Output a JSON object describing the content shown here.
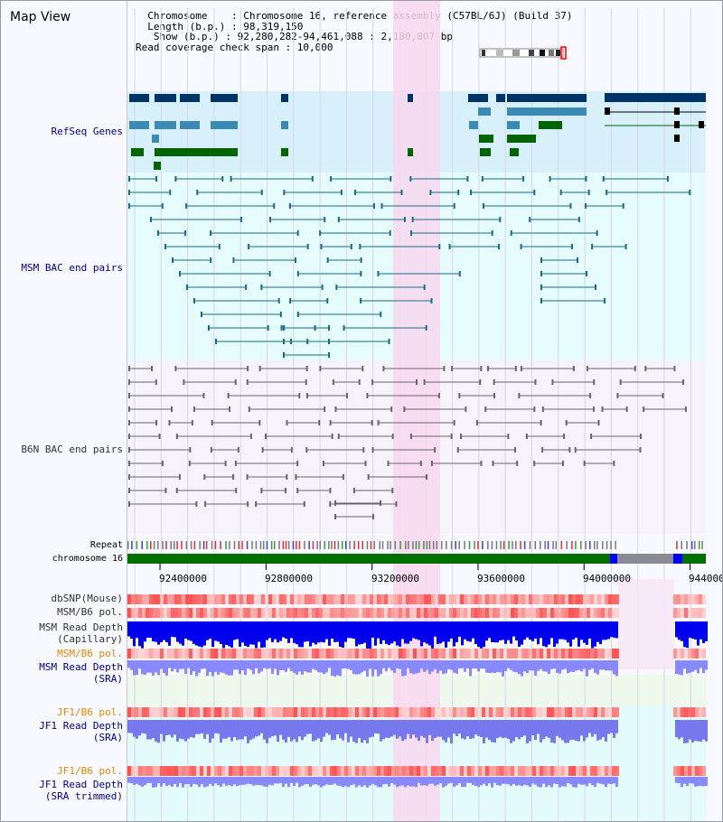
{
  "map_title": "Map View",
  "info_lines": [
    "  Chromosome    : Chromosome 16, reference assembly (C57BL/6J) (Build 37)",
    "  Length (b.p.) : 98,319,150",
    "   Show (b.p.) : 92,280,282-94,461,088 : 2,180,807 bp",
    "Read coverage check span : 10,000"
  ],
  "tracks": {
    "refseq": "RefSeq Genes",
    "msm_bac": "MSM BAC end pairs",
    "b6n_bac": "B6N BAC end pairs",
    "repeat": "Repeat",
    "chromosome": "chromosome 16",
    "dbsnp": "dbSNP(Mouse)",
    "msm_b6_pol_1": "MSM/B6 pol.",
    "msm_depth_cap_1": "MSM Read Depth",
    "msm_depth_cap_2": "(Capillary)",
    "msm_b6_pol_2": "MSM/B6 pol.",
    "msm_depth_sra_1": "MSM Read Depth",
    "msm_depth_sra_2": "(SRA)",
    "jf1_b6_pol_1": "JF1/B6 pol.",
    "jf1_depth_sra_1": "JF1 Read Depth",
    "jf1_depth_sra_2": "(SRA)",
    "jf1_b6_pol_2": "JF1/B6 pol.",
    "jf1_depth_trim_1": "JF1 Read Depth",
    "jf1_depth_trim_2": "(SRA trimmed)"
  },
  "axis_ticks": [
    "92400000",
    "92800000",
    "93200000",
    "93600000",
    "94000000",
    "944000"
  ],
  "colors": {
    "label_blue": "#00008b",
    "label_orange": "#e08a00",
    "highlight_pink": "#f8d8f0",
    "gene_dark": "#003366",
    "gene_mid": "#3a8ab5",
    "gene_green": "#006400",
    "msm_line": "#1a6b8a",
    "b6n_line": "#666666",
    "snp_red": "#ff5a5a",
    "depth_blue": "#0000ff",
    "depth_lavender": "#8888ff"
  }
}
